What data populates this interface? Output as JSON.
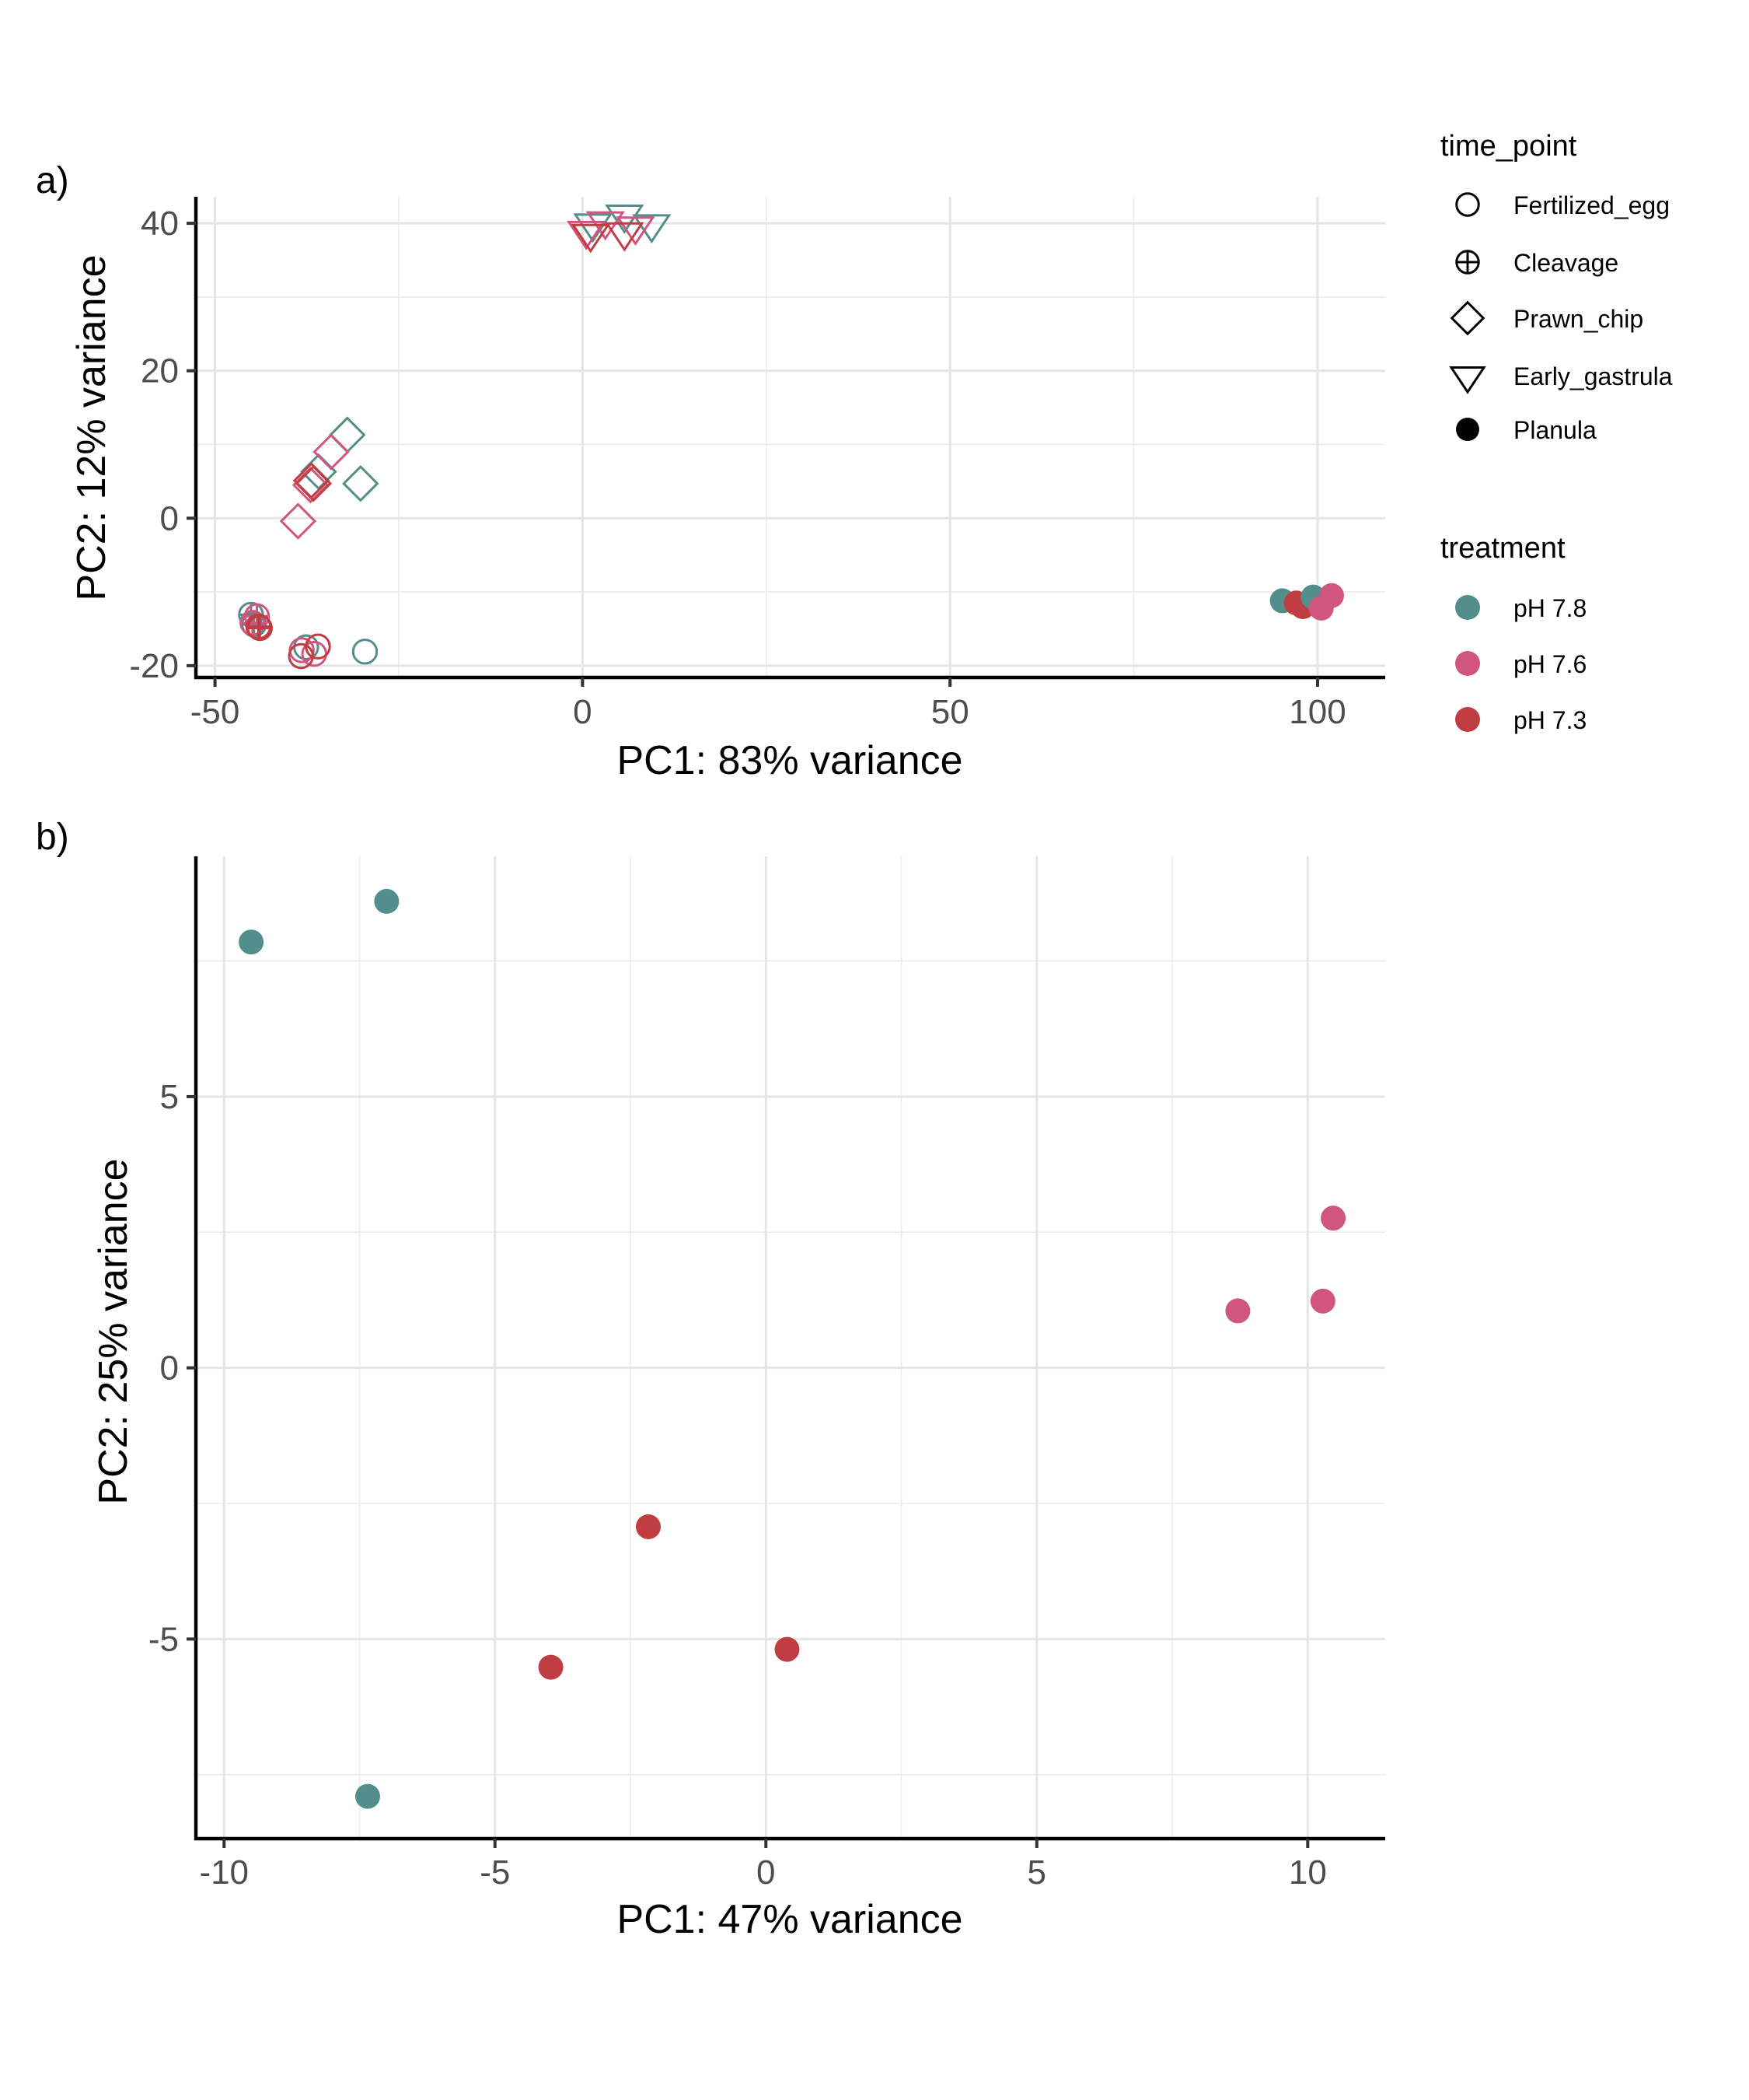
{
  "colors": {
    "pH 7.8": "#528e8c",
    "pH 7.6": "#d1567f",
    "pH 7.3": "#c03d42",
    "legend_key": "#000000"
  },
  "legend": {
    "time_point": {
      "title": "time_point",
      "items": [
        {
          "label": "Fertilized_egg",
          "shape": "open-circle"
        },
        {
          "label": "Cleavage",
          "shape": "circle-plus"
        },
        {
          "label": "Prawn_chip",
          "shape": "open-diamond"
        },
        {
          "label": "Early_gastrula",
          "shape": "open-triangle-down"
        },
        {
          "label": "Planula",
          "shape": "filled-circle"
        }
      ]
    },
    "treatment": {
      "title": "treatment",
      "items": [
        {
          "label": "pH 7.8"
        },
        {
          "label": "pH 7.6"
        },
        {
          "label": "pH 7.3"
        }
      ]
    }
  },
  "chart_data": [
    {
      "panel": "a)",
      "type": "scatter",
      "title": "",
      "xlabel": "PC1: 83% variance",
      "ylabel": "PC2: 12% variance",
      "xlim": [
        -52.6,
        109.2
      ],
      "ylim": [
        -21.6,
        43.6
      ],
      "xticks": [
        -50,
        0,
        50,
        100
      ],
      "xtick_labels": [
        "-50",
        "0",
        "50",
        "100"
      ],
      "xminor": [
        -25,
        25,
        75
      ],
      "yticks": [
        -20,
        0,
        20,
        40
      ],
      "ytick_labels": [
        "-20",
        "0",
        "20",
        "40"
      ],
      "yminor": [
        -10,
        10,
        30
      ],
      "grid": true,
      "legend_position": "right",
      "points": [
        {
          "x": -29.6,
          "y": -18.1,
          "time_point": "Fertilized_egg",
          "treatment": "pH 7.8"
        },
        {
          "x": -37.6,
          "y": -17.5,
          "time_point": "Fertilized_egg",
          "treatment": "pH 7.8"
        },
        {
          "x": -38.2,
          "y": -17.9,
          "time_point": "Fertilized_egg",
          "treatment": "pH 7.6"
        },
        {
          "x": -36.5,
          "y": -18.4,
          "time_point": "Fertilized_egg",
          "treatment": "pH 7.6"
        },
        {
          "x": -36.0,
          "y": -17.4,
          "time_point": "Fertilized_egg",
          "treatment": "pH 7.3"
        },
        {
          "x": -38.3,
          "y": -18.7,
          "time_point": "Fertilized_egg",
          "treatment": "pH 7.3"
        },
        {
          "x": -45.1,
          "y": -13.1,
          "time_point": "Cleavage",
          "treatment": "pH 7.8"
        },
        {
          "x": -44.7,
          "y": -14.4,
          "time_point": "Cleavage",
          "treatment": "pH 7.8"
        },
        {
          "x": -44.3,
          "y": -13.3,
          "time_point": "Cleavage",
          "treatment": "pH 7.6"
        },
        {
          "x": -44.9,
          "y": -14.2,
          "time_point": "Cleavage",
          "treatment": "pH 7.6"
        },
        {
          "x": -44.1,
          "y": -14.7,
          "time_point": "Cleavage",
          "treatment": "pH 7.3"
        },
        {
          "x": -43.9,
          "y": -14.9,
          "time_point": "Cleavage",
          "treatment": "pH 7.3"
        },
        {
          "x": -32.0,
          "y": 11.3,
          "time_point": "Prawn_chip",
          "treatment": "pH 7.8"
        },
        {
          "x": -35.9,
          "y": 6.3,
          "time_point": "Prawn_chip",
          "treatment": "pH 7.8"
        },
        {
          "x": -30.2,
          "y": 4.7,
          "time_point": "Prawn_chip",
          "treatment": "pH 7.8"
        },
        {
          "x": -34.2,
          "y": 9.0,
          "time_point": "Prawn_chip",
          "treatment": "pH 7.6"
        },
        {
          "x": -37.0,
          "y": 4.5,
          "time_point": "Prawn_chip",
          "treatment": "pH 7.6"
        },
        {
          "x": -38.7,
          "y": -0.4,
          "time_point": "Prawn_chip",
          "treatment": "pH 7.6"
        },
        {
          "x": -36.6,
          "y": 4.7,
          "time_point": "Prawn_chip",
          "treatment": "pH 7.3"
        },
        {
          "x": -36.9,
          "y": 5.1,
          "time_point": "Prawn_chip",
          "treatment": "pH 7.3"
        },
        {
          "x": 1.4,
          "y": 40.0,
          "time_point": "Early_gastrula",
          "treatment": "pH 7.8"
        },
        {
          "x": 5.7,
          "y": 41.2,
          "time_point": "Early_gastrula",
          "treatment": "pH 7.8"
        },
        {
          "x": 9.4,
          "y": 39.9,
          "time_point": "Early_gastrula",
          "treatment": "pH 7.8"
        },
        {
          "x": 3.1,
          "y": 40.3,
          "time_point": "Early_gastrula",
          "treatment": "pH 7.6"
        },
        {
          "x": 7.2,
          "y": 39.6,
          "time_point": "Early_gastrula",
          "treatment": "pH 7.6"
        },
        {
          "x": 0.5,
          "y": 39.0,
          "time_point": "Early_gastrula",
          "treatment": "pH 7.6"
        },
        {
          "x": 1.1,
          "y": 38.6,
          "time_point": "Early_gastrula",
          "treatment": "pH 7.3"
        },
        {
          "x": 5.7,
          "y": 38.8,
          "time_point": "Early_gastrula",
          "treatment": "pH 7.3"
        },
        {
          "x": 95.2,
          "y": -11.2,
          "time_point": "Planula",
          "treatment": "pH 7.8"
        },
        {
          "x": 97.1,
          "y": -11.5,
          "time_point": "Planula",
          "treatment": "pH 7.3"
        },
        {
          "x": 98.0,
          "y": -12.0,
          "time_point": "Planula",
          "treatment": "pH 7.3"
        },
        {
          "x": 99.4,
          "y": -10.7,
          "time_point": "Planula",
          "treatment": "pH 7.8"
        },
        {
          "x": 101.9,
          "y": -10.5,
          "time_point": "Planula",
          "treatment": "pH 7.6"
        },
        {
          "x": 100.5,
          "y": -12.2,
          "time_point": "Planula",
          "treatment": "pH 7.6"
        }
      ]
    },
    {
      "panel": "b)",
      "type": "scatter",
      "title": "",
      "xlabel": "PC1: 47% variance",
      "ylabel": "PC2: 25% variance",
      "xlim": [
        -10.52,
        11.43
      ],
      "ylim": [
        -8.68,
        9.43
      ],
      "xticks": [
        -10,
        -5,
        0,
        5,
        10
      ],
      "xtick_labels": [
        "-10",
        "-5",
        "0",
        "5",
        "10"
      ],
      "xminor": [
        -7.5,
        -2.5,
        2.5,
        7.5
      ],
      "yticks": [
        -5,
        0,
        5
      ],
      "ytick_labels": [
        "-5",
        "0",
        "5"
      ],
      "yminor": [
        -7.5,
        -2.5,
        2.5,
        7.5
      ],
      "grid": true,
      "legend_position": "none",
      "points": [
        {
          "x": -9.5,
          "y": 7.85,
          "time_point": "Planula",
          "treatment": "pH 7.8"
        },
        {
          "x": -7.0,
          "y": 8.6,
          "time_point": "Planula",
          "treatment": "pH 7.8"
        },
        {
          "x": -7.35,
          "y": -7.9,
          "time_point": "Planula",
          "treatment": "pH 7.8"
        },
        {
          "x": -2.17,
          "y": -2.93,
          "time_point": "Planula",
          "treatment": "pH 7.3"
        },
        {
          "x": -3.97,
          "y": -5.52,
          "time_point": "Planula",
          "treatment": "pH 7.3"
        },
        {
          "x": 0.39,
          "y": -5.19,
          "time_point": "Planula",
          "treatment": "pH 7.3"
        },
        {
          "x": 8.71,
          "y": 1.05,
          "time_point": "Planula",
          "treatment": "pH 7.6"
        },
        {
          "x": 10.28,
          "y": 1.23,
          "time_point": "Planula",
          "treatment": "pH 7.6"
        },
        {
          "x": 10.47,
          "y": 2.76,
          "time_point": "Planula",
          "treatment": "pH 7.6"
        }
      ]
    }
  ]
}
